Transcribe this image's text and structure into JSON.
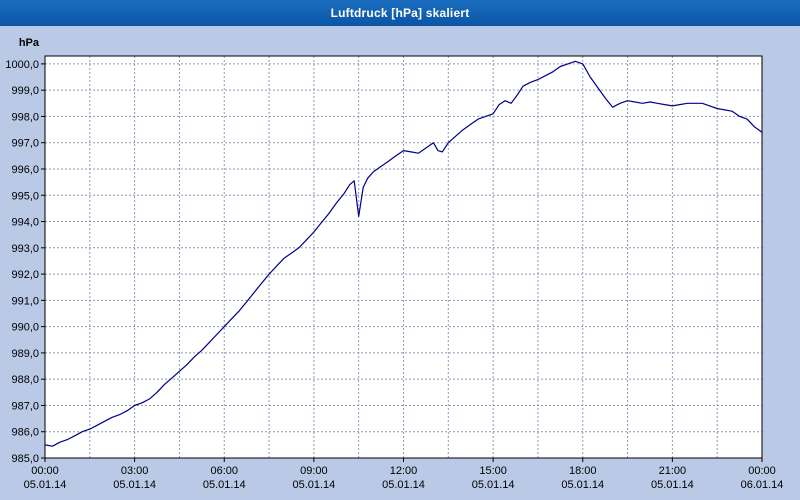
{
  "window": {
    "title": "Luftdruck [hPa] skaliert"
  },
  "colors": {
    "background": "#b9c9e6",
    "titlebar": "#0e5fae",
    "titlebar_text": "#ffffff",
    "plot_background": "#ffffff",
    "axis": "#000000",
    "grid": "#8a99bb",
    "line": "#00008b"
  },
  "chart_data": {
    "type": "line",
    "title": "Luftdruck [hPa] skaliert",
    "ylabel": "hPa",
    "xlabel": "",
    "ylim": [
      985.0,
      1000.0
    ],
    "ytick_step": 1.0,
    "ytick_values": [
      985,
      986,
      987,
      988,
      989,
      990,
      991,
      992,
      993,
      994,
      995,
      996,
      997,
      998,
      999,
      1000
    ],
    "ytick_labels": [
      "985,0",
      "986,0",
      "987,0",
      "988,0",
      "989,0",
      "990,0",
      "991,0",
      "992,0",
      "993,0",
      "994,0",
      "995,0",
      "996,0",
      "997,0",
      "998,0",
      "999,0",
      "1000,0"
    ],
    "x_hours_range": [
      0,
      24
    ],
    "x_major_every_hours": 3,
    "x_minor_every_hours": 1.5,
    "x_ticks": [
      {
        "time": "00:00",
        "date": "05.01.14"
      },
      {
        "time": "03:00",
        "date": "05.01.14"
      },
      {
        "time": "06:00",
        "date": "05.01.14"
      },
      {
        "time": "09:00",
        "date": "05.01.14"
      },
      {
        "time": "12:00",
        "date": "05.01.14"
      },
      {
        "time": "15:00",
        "date": "05.01.14"
      },
      {
        "time": "18:00",
        "date": "05.01.14"
      },
      {
        "time": "21:00",
        "date": "05.01.14"
      },
      {
        "time": "00:00",
        "date": "06.01.14"
      }
    ],
    "grid": {
      "style": "dashed",
      "on": true
    },
    "legend": "none",
    "series": [
      {
        "name": "Luftdruck",
        "color": "#00008b",
        "x": [
          0,
          0.25,
          0.5,
          0.75,
          1,
          1.25,
          1.5,
          1.75,
          2,
          2.25,
          2.5,
          2.75,
          3,
          3.25,
          3.5,
          3.75,
          4,
          4.25,
          4.5,
          4.75,
          5,
          5.25,
          5.5,
          5.75,
          6,
          6.25,
          6.5,
          6.75,
          7,
          7.25,
          7.5,
          7.75,
          8,
          8.25,
          8.5,
          8.75,
          9,
          9.25,
          9.5,
          9.75,
          10,
          10.2,
          10.35,
          10.5,
          10.65,
          10.8,
          11,
          11.25,
          11.5,
          11.75,
          12,
          12.25,
          12.5,
          12.75,
          13,
          13.15,
          13.3,
          13.5,
          13.75,
          14,
          14.25,
          14.5,
          14.75,
          15,
          15.2,
          15.4,
          15.6,
          15.8,
          16,
          16.25,
          16.5,
          16.75,
          17,
          17.25,
          17.5,
          17.75,
          18,
          18.25,
          18.5,
          18.75,
          19,
          19.25,
          19.5,
          19.75,
          20,
          20.25,
          20.5,
          20.75,
          21,
          21.25,
          21.5,
          21.75,
          22,
          22.25,
          22.5,
          22.75,
          23,
          23.25,
          23.5,
          23.75,
          24
        ],
        "y": [
          985.5,
          985.45,
          985.6,
          985.7,
          985.85,
          986.0,
          986.1,
          986.25,
          986.4,
          986.55,
          986.65,
          986.8,
          987.0,
          987.1,
          987.25,
          987.5,
          987.8,
          988.05,
          988.3,
          988.55,
          988.85,
          989.1,
          989.4,
          989.7,
          990.0,
          990.3,
          990.6,
          990.95,
          991.3,
          991.65,
          992.0,
          992.3,
          992.6,
          992.8,
          993.0,
          993.3,
          993.6,
          993.95,
          994.3,
          994.7,
          995.05,
          995.4,
          995.55,
          994.2,
          995.3,
          995.65,
          995.9,
          996.1,
          996.3,
          996.5,
          996.7,
          996.65,
          996.6,
          996.8,
          997.0,
          996.7,
          996.65,
          997.0,
          997.25,
          997.5,
          997.7,
          997.9,
          998.0,
          998.1,
          998.45,
          998.6,
          998.5,
          998.8,
          999.15,
          999.3,
          999.4,
          999.55,
          999.7,
          999.9,
          1000.0,
          1000.1,
          1000.0,
          999.5,
          999.1,
          998.7,
          998.35,
          998.5,
          998.6,
          998.55,
          998.5,
          998.55,
          998.5,
          998.45,
          998.4,
          998.45,
          998.5,
          998.5,
          998.5,
          998.4,
          998.3,
          998.25,
          998.2,
          998.0,
          997.9,
          997.6,
          997.4
        ]
      }
    ]
  }
}
